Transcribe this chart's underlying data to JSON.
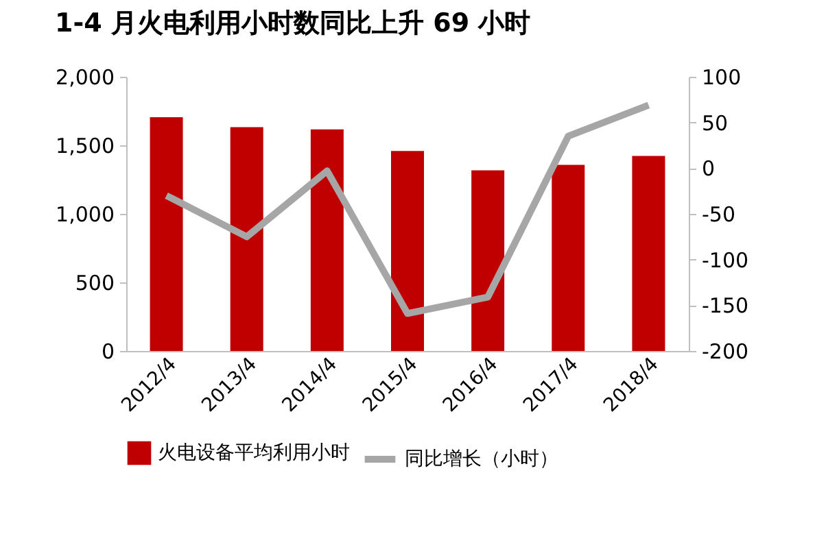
{
  "chart_data": {
    "type": "bar",
    "title": "1-4 月火电利用小时数同比上升 69 小时",
    "categories": [
      "2012/4",
      "2013/4",
      "2014/4",
      "2015/4",
      "2016/4",
      "2017/4",
      "2018/4"
    ],
    "series": [
      {
        "name": "火电设备平均利用小时",
        "color": "#c00000",
        "values": [
          1705,
          1632,
          1616,
          1459,
          1317,
          1358,
          1422
        ]
      },
      {
        "name": "同比增长（小时）",
        "type": "line",
        "axis": "y2",
        "color": "#a6a6a6",
        "values": [
          -30,
          -75,
          -3,
          -159,
          -141,
          35,
          69
        ]
      }
    ],
    "ylim": [
      0,
      2000
    ],
    "yticks": [
      {
        "value": 0,
        "label": "0"
      },
      {
        "value": 500,
        "label": "500"
      },
      {
        "value": 1000,
        "label": "1,000"
      },
      {
        "value": 1500,
        "label": "1,500"
      },
      {
        "value": 2000,
        "label": "2,000"
      }
    ],
    "y2lim": [
      -200,
      100
    ],
    "y2ticks": [
      -200,
      -150,
      -100,
      -50,
      0,
      50,
      100
    ],
    "grid": false,
    "legend": "bottom",
    "marker": "none"
  }
}
